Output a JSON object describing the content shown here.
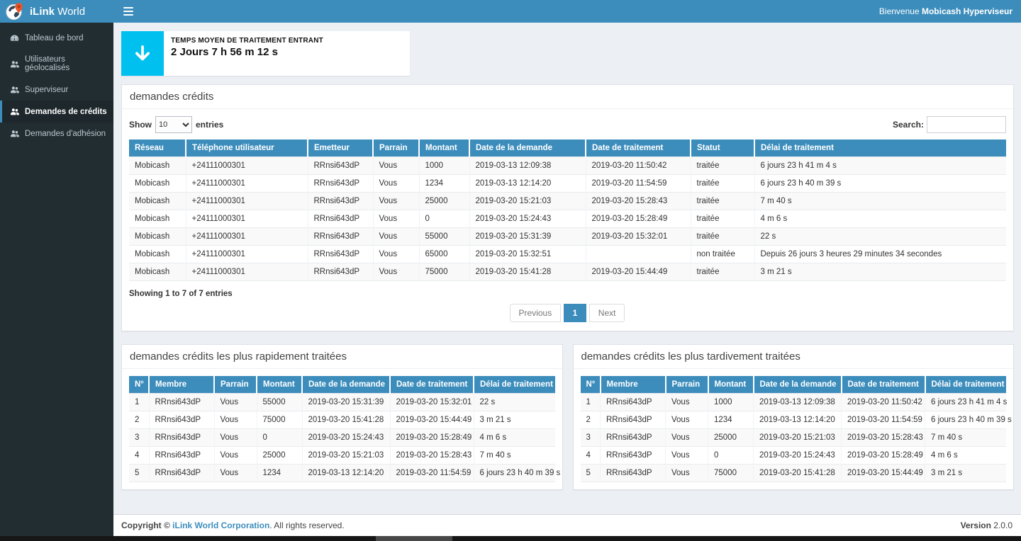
{
  "app": {
    "brand_bold": "iLink",
    "brand_light": " World",
    "welcome_prefix": "Bienvenue ",
    "welcome_user": "Mobicash Hyperviseur"
  },
  "sidebar": {
    "items": [
      {
        "id": "tableau-de-bord",
        "label": "Tableau de bord",
        "icon": "dashboard-icon",
        "active": false
      },
      {
        "id": "utilisateurs-geolocalises",
        "label": "Utilisateurs géolocalisés",
        "icon": "users-icon",
        "active": false
      },
      {
        "id": "superviseur",
        "label": "Superviseur",
        "icon": "users-icon",
        "active": false
      },
      {
        "id": "demandes-de-credits",
        "label": "Demandes de crédits",
        "icon": "users-icon",
        "active": true
      },
      {
        "id": "demandes-adhesion",
        "label": "Demandes d'adhésion",
        "icon": "users-icon",
        "active": false
      }
    ]
  },
  "stat_card": {
    "title": "TEMPS MOYEN DE TRAITEMENT ENTRANT",
    "value": "2 Jours 7 h 56 m 12 s",
    "icon": "arrow-down-icon"
  },
  "main_panel": {
    "title": "demandes crédits",
    "show_label": "Show",
    "entries_label": "entries",
    "page_length": "10",
    "search_label": "Search:",
    "search_value": "",
    "columns": [
      "Réseau",
      "Téléphone utilisateur",
      "Emetteur",
      "Parrain",
      "Montant",
      "Date de la demande",
      "Date de traitement",
      "Statut",
      "Délai de traitement"
    ],
    "rows": [
      [
        "Mobicash",
        "+24111000301",
        "RRnsi643dP",
        "Vous",
        "1000",
        "2019-03-13 12:09:38",
        "2019-03-20 11:50:42",
        "traitée",
        "6 jours 23 h 41 m 4 s"
      ],
      [
        "Mobicash",
        "+24111000301",
        "RRnsi643dP",
        "Vous",
        "1234",
        "2019-03-13 12:14:20",
        "2019-03-20 11:54:59",
        "traitée",
        "6 jours 23 h 40 m 39 s"
      ],
      [
        "Mobicash",
        "+24111000301",
        "RRnsi643dP",
        "Vous",
        "25000",
        "2019-03-20 15:21:03",
        "2019-03-20 15:28:43",
        "traitée",
        "7 m 40 s"
      ],
      [
        "Mobicash",
        "+24111000301",
        "RRnsi643dP",
        "Vous",
        "0",
        "2019-03-20 15:24:43",
        "2019-03-20 15:28:49",
        "traitée",
        "4 m 6 s"
      ],
      [
        "Mobicash",
        "+24111000301",
        "RRnsi643dP",
        "Vous",
        "55000",
        "2019-03-20 15:31:39",
        "2019-03-20 15:32:01",
        "traitée",
        "22 s"
      ],
      [
        "Mobicash",
        "+24111000301",
        "RRnsi643dP",
        "Vous",
        "65000",
        "2019-03-20 15:32:51",
        "",
        "non traitée",
        "Depuis 26 jours 3 heures 29 minutes 34 secondes"
      ],
      [
        "Mobicash",
        "+24111000301",
        "RRnsi643dP",
        "Vous",
        "75000",
        "2019-03-20 15:41:28",
        "2019-03-20 15:44:49",
        "traitée",
        "3 m 21 s"
      ]
    ],
    "summary": "Showing 1 to 7 of 7 entries",
    "pagination": {
      "previous": "Previous",
      "page": "1",
      "next": "Next"
    }
  },
  "fast_panel": {
    "title": "demandes crédits les plus rapidement traitées",
    "columns": [
      "N°",
      "Membre",
      "Parrain",
      "Montant",
      "Date de la demande",
      "Date de traitement",
      "Délai de traitement"
    ],
    "rows": [
      [
        "1",
        "RRnsi643dP",
        "Vous",
        "55000",
        "2019-03-20 15:31:39",
        "2019-03-20 15:32:01",
        "22 s"
      ],
      [
        "2",
        "RRnsi643dP",
        "Vous",
        "75000",
        "2019-03-20 15:41:28",
        "2019-03-20 15:44:49",
        "3 m 21 s"
      ],
      [
        "3",
        "RRnsi643dP",
        "Vous",
        "0",
        "2019-03-20 15:24:43",
        "2019-03-20 15:28:49",
        "4 m 6 s"
      ],
      [
        "4",
        "RRnsi643dP",
        "Vous",
        "25000",
        "2019-03-20 15:21:03",
        "2019-03-20 15:28:43",
        "7 m 40 s"
      ],
      [
        "5",
        "RRnsi643dP",
        "Vous",
        "1234",
        "2019-03-13 12:14:20",
        "2019-03-20 11:54:59",
        "6 jours 23 h 40 m 39 s"
      ]
    ]
  },
  "late_panel": {
    "title": "demandes crédits les plus tardivement traitées",
    "columns": [
      "N°",
      "Membre",
      "Parrain",
      "Montant",
      "Date de la demande",
      "Date de traitement",
      "Délai de traitement"
    ],
    "rows": [
      [
        "1",
        "RRnsi643dP",
        "Vous",
        "1000",
        "2019-03-13 12:09:38",
        "2019-03-20 11:50:42",
        "6 jours 23 h 41 m 4 s"
      ],
      [
        "2",
        "RRnsi643dP",
        "Vous",
        "1234",
        "2019-03-13 12:14:20",
        "2019-03-20 11:54:59",
        "6 jours 23 h 40 m 39 s"
      ],
      [
        "3",
        "RRnsi643dP",
        "Vous",
        "25000",
        "2019-03-20 15:21:03",
        "2019-03-20 15:28:43",
        "7 m 40 s"
      ],
      [
        "4",
        "RRnsi643dP",
        "Vous",
        "0",
        "2019-03-20 15:24:43",
        "2019-03-20 15:28:49",
        "4 m 6 s"
      ],
      [
        "5",
        "RRnsi643dP",
        "Vous",
        "75000",
        "2019-03-20 15:41:28",
        "2019-03-20 15:44:49",
        "3 m 21 s"
      ]
    ]
  },
  "footer": {
    "copyright_prefix": "Copyright © ",
    "company": "iLink World Corporation",
    "copyright_suffix": ". All rights reserved.",
    "version_label": "Version",
    "version_value": "2.0.0"
  },
  "colors": {
    "accent": "#3c8dbc",
    "sidebar_bg": "#222d32",
    "sidebar_active_bg": "#1e282c",
    "content_bg": "#ecf0f5",
    "stat_icon_bg": "#00c0ef",
    "table_header_bg": "#3c8dbc"
  }
}
